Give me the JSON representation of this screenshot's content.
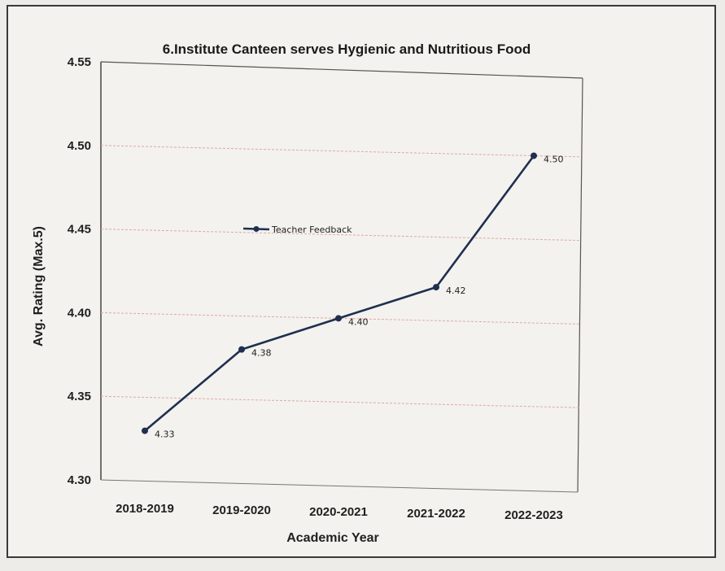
{
  "chart_data": {
    "type": "line",
    "title": "6.Institute Canteen serves Hygienic and Nutritious Food",
    "xlabel": "Academic Year",
    "ylabel": "Avg. Rating (Max.5)",
    "categories": [
      "2018-2019",
      "2019-2020",
      "2020-2021",
      "2021-2022",
      "2022-2023"
    ],
    "series": [
      {
        "name": "Teacher Feedback",
        "values": [
          4.33,
          4.38,
          4.4,
          4.42,
          4.5
        ],
        "labels": [
          "4.33",
          "4.38",
          "4.40",
          "4.42",
          "4.50"
        ],
        "color": "#1f2f4f"
      }
    ],
    "ylim": [
      4.3,
      4.55
    ],
    "yticks": [
      "4.30",
      "4.35",
      "4.40",
      "4.45",
      "4.50",
      "4.55"
    ],
    "ytick_values": [
      4.3,
      4.35,
      4.4,
      4.45,
      4.5,
      4.55
    ],
    "grid": true,
    "grid_color": "#e3a6a6",
    "legend_position": "inside-left"
  }
}
